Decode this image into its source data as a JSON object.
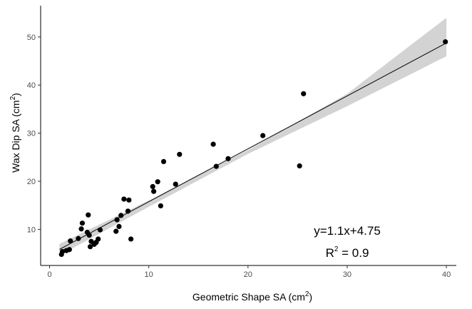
{
  "chart_data": {
    "type": "scatter",
    "xlabel": "Geometric Shape SA (cm",
    "xlabel_sup": "2",
    "xlabel_end": ")",
    "ylabel": "Wax Dip SA (cm",
    "ylabel_sup": "2",
    "ylabel_end": ")",
    "xlim": [
      -0.9,
      41.0
    ],
    "ylim": [
      2.5,
      56.5
    ],
    "x_ticks": [
      0,
      10,
      20,
      30,
      40
    ],
    "y_ticks": [
      10,
      20,
      30,
      40,
      50
    ],
    "grid": false,
    "point_color": "#000000",
    "line_color": "#000000",
    "band_color": "#d3d3d3",
    "fit": {
      "slope": 1.1,
      "intercept": 4.75
    },
    "confidence_band": {
      "x": [
        1.0,
        10.0,
        20.0,
        30.0,
        40.0
      ],
      "lower": [
        4.6,
        14.7,
        25.7,
        35.6,
        46.0
      ],
      "upper": [
        7.0,
        16.0,
        26.5,
        38.2,
        54.0
      ]
    },
    "equation_text": "y=1.1x+4.75",
    "r2_label": "R",
    "r2_sup": "2",
    "r2_value": " = 0.9",
    "points": [
      {
        "x": 1.2,
        "y": 4.8
      },
      {
        "x": 1.3,
        "y": 5.4
      },
      {
        "x": 1.7,
        "y": 5.6
      },
      {
        "x": 2.0,
        "y": 5.8
      },
      {
        "x": 2.1,
        "y": 7.6
      },
      {
        "x": 2.9,
        "y": 8.1
      },
      {
        "x": 3.2,
        "y": 10.1
      },
      {
        "x": 3.3,
        "y": 11.3
      },
      {
        "x": 3.8,
        "y": 9.4
      },
      {
        "x": 3.9,
        "y": 13.0
      },
      {
        "x": 4.0,
        "y": 8.8
      },
      {
        "x": 4.1,
        "y": 6.4
      },
      {
        "x": 4.2,
        "y": 7.5
      },
      {
        "x": 4.5,
        "y": 6.9
      },
      {
        "x": 4.7,
        "y": 7.3
      },
      {
        "x": 4.9,
        "y": 8.0
      },
      {
        "x": 5.1,
        "y": 9.9
      },
      {
        "x": 6.7,
        "y": 9.6
      },
      {
        "x": 6.8,
        "y": 12.0
      },
      {
        "x": 7.0,
        "y": 10.6
      },
      {
        "x": 7.2,
        "y": 12.9
      },
      {
        "x": 7.5,
        "y": 16.3
      },
      {
        "x": 7.9,
        "y": 13.8
      },
      {
        "x": 8.0,
        "y": 16.1
      },
      {
        "x": 8.2,
        "y": 8.0
      },
      {
        "x": 10.4,
        "y": 18.9
      },
      {
        "x": 10.5,
        "y": 17.9
      },
      {
        "x": 10.9,
        "y": 19.9
      },
      {
        "x": 11.2,
        "y": 14.9
      },
      {
        "x": 11.5,
        "y": 24.1
      },
      {
        "x": 12.7,
        "y": 19.4
      },
      {
        "x": 13.1,
        "y": 25.6
      },
      {
        "x": 16.5,
        "y": 27.7
      },
      {
        "x": 16.8,
        "y": 23.1
      },
      {
        "x": 18.0,
        "y": 24.7
      },
      {
        "x": 21.5,
        "y": 29.5
      },
      {
        "x": 25.2,
        "y": 23.2
      },
      {
        "x": 25.6,
        "y": 38.2
      },
      {
        "x": 39.9,
        "y": 49.0
      }
    ]
  }
}
